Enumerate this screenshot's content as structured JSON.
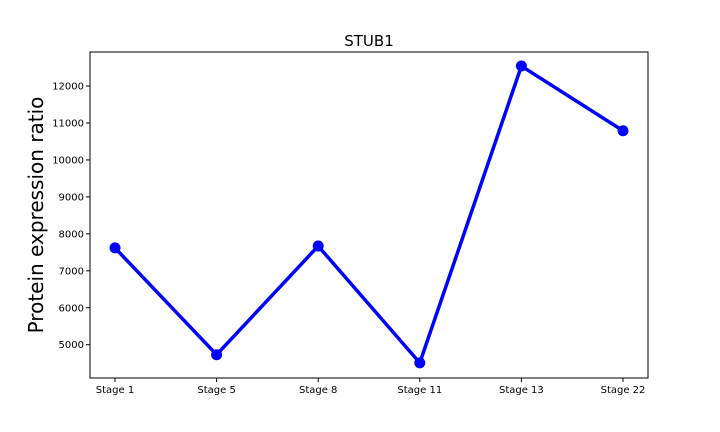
{
  "chart_data": {
    "type": "line",
    "title": "STUB1",
    "xlabel": "",
    "ylabel": "Protein expression ratio",
    "categories": [
      "Stage 1",
      "Stage 5",
      "Stage 8",
      "Stage 11",
      "Stage 13",
      "Stage 22"
    ],
    "series": [
      {
        "values": [
          7620,
          4730,
          7670,
          4510,
          12540,
          10790
        ]
      }
    ],
    "yticks": [
      5000,
      6000,
      7000,
      8000,
      9000,
      10000,
      11000,
      12000
    ],
    "ylim": [
      4100,
      12920
    ],
    "grid": false,
    "legend": "none",
    "colors": {
      "line": "#0000ff",
      "marker": "#0000ff",
      "axes": "#000000"
    }
  }
}
